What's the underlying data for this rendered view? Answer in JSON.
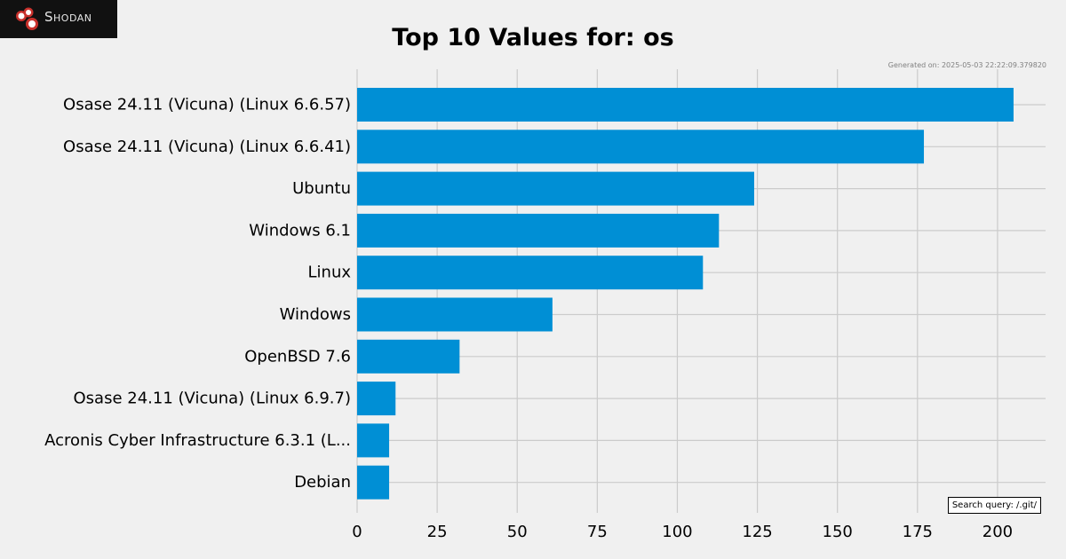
{
  "brand": {
    "name": "Shodan",
    "logo_icon": "shodan-logo-icon"
  },
  "generated": "Generated on: 2025-05-03 22:22:09.379820",
  "search_query": "Search query: /.git/",
  "colors": {
    "bar": "#008fd5",
    "grid": "#cbcbcb",
    "background": "#f0f0f0"
  },
  "chart_data": {
    "type": "bar",
    "orientation": "horizontal",
    "title": "Top 10 Values for: os",
    "xlabel": "",
    "ylabel": "",
    "categories": [
      "Osase 24.11 (Vicuna) (Linux 6.6.57)",
      "Osase 24.11 (Vicuna) (Linux 6.6.41)",
      "Ubuntu",
      "Windows 6.1",
      "Linux",
      "Windows",
      "OpenBSD 7.6",
      "Osase 24.11 (Vicuna) (Linux 6.9.7)",
      "Acronis Cyber Infrastructure 6.3.1 (L...",
      "Debian"
    ],
    "values": [
      205,
      177,
      124,
      113,
      108,
      61,
      32,
      12,
      10,
      10
    ],
    "xlim": [
      0,
      215
    ],
    "xticks": [
      0,
      25,
      50,
      75,
      100,
      125,
      150,
      175,
      200
    ],
    "grid": true
  }
}
